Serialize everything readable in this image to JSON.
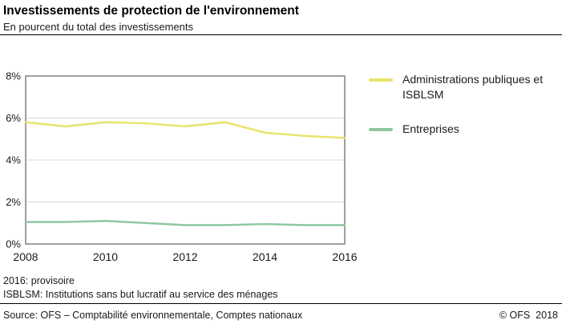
{
  "header": {
    "title": "Investissements de protection de l'environnement",
    "subtitle": "En pourcent du total des investissements"
  },
  "chart_data": {
    "type": "line",
    "x": [
      2008,
      2009,
      2010,
      2011,
      2012,
      2013,
      2014,
      2015,
      2016
    ],
    "series": [
      {
        "name": "Administrations publiques et ISBLSM",
        "color": "#e8e46c",
        "values": [
          5.8,
          5.6,
          5.8,
          5.75,
          5.6,
          5.8,
          5.3,
          5.15,
          5.05
        ]
      },
      {
        "name": "Entreprises",
        "color": "#8fc7a2",
        "values": [
          1.05,
          1.05,
          1.1,
          1.0,
          0.9,
          0.9,
          0.95,
          0.9,
          0.9
        ]
      }
    ],
    "ylim": [
      0,
      8
    ],
    "yticks": [
      0,
      2,
      4,
      6,
      8
    ],
    "ytick_labels": [
      "0%",
      "2%",
      "4%",
      "6%",
      "8%"
    ],
    "xticks": [
      2008,
      2010,
      2012,
      2014,
      2016
    ],
    "grid": true,
    "legend_position": "right",
    "title": "Investissements de protection de l'environnement",
    "xlabel": "",
    "ylabel": "En pourcent du total des investissements"
  },
  "notes": {
    "line1": "2016: provisoire",
    "line2": "ISBLSM: Institutions sans but lucratif au service des ménages"
  },
  "footer": {
    "source": "Source: OFS – Comptabilité environnementale, Comptes nationaux",
    "copyright": "© OFS  2018"
  }
}
